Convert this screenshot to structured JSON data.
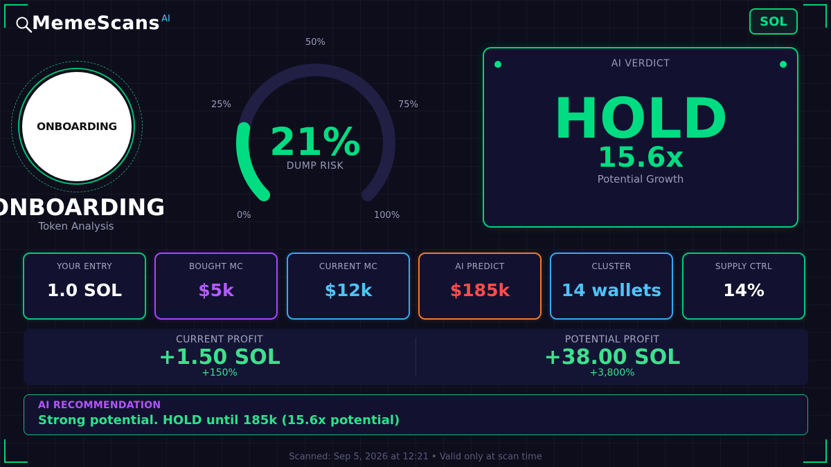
{
  "brand": {
    "name": "MemeScans",
    "ai_tag": "AI",
    "icon": "magnifier-icon"
  },
  "chain": {
    "label": "SOL"
  },
  "token": {
    "logo_text": "ONBOARDING",
    "name": "ONBOARDING",
    "subtitle": "Token Analysis"
  },
  "dump_risk": {
    "value": 21,
    "value_label": "21%",
    "label": "DUMP RISK",
    "ticks": {
      "t0": "0%",
      "t25": "25%",
      "t50": "50%",
      "t75": "75%",
      "t100": "100%"
    },
    "colors": {
      "track": "#221f45",
      "fill": "#00dc82"
    }
  },
  "verdict": {
    "title": "AI VERDICT",
    "decision": "HOLD",
    "multiplier": "15.6x",
    "subtitle": "Potential Growth"
  },
  "stats": [
    {
      "label": "YOUR ENTRY",
      "value": "1.0 SOL",
      "border": "#00c97a",
      "color": "#ffffff"
    },
    {
      "label": "BOUGHT MC",
      "value": "$5k",
      "border": "#a347ff",
      "color": "#b45cff"
    },
    {
      "label": "CURRENT MC",
      "value": "$12k",
      "border": "#3aa8f0",
      "color": "#4fc3f7"
    },
    {
      "label": "AI PREDICT",
      "value": "$185k",
      "border": "#f07a2a",
      "color": "#ff4d4d"
    },
    {
      "label": "CLUSTER",
      "value": "14 wallets",
      "border": "#3aa8f0",
      "color": "#4fc3f7"
    },
    {
      "label": "SUPPLY CTRL",
      "value": "14%",
      "border": "#00c97a",
      "color": "#ffffff"
    }
  ],
  "profit": {
    "current": {
      "label": "CURRENT PROFIT",
      "value": "+1.50 SOL",
      "pct": "+150%"
    },
    "potential": {
      "label": "POTENTIAL PROFIT",
      "value": "+38.00 SOL",
      "pct": "+3,800%"
    }
  },
  "recommendation": {
    "title": "AI RECOMMENDATION",
    "text": "Strong potential. HOLD until 185k (15.6x potential)"
  },
  "footer": {
    "text": "Scanned: Sep 5, 2026 at 12:21  •  Valid only at scan time"
  }
}
